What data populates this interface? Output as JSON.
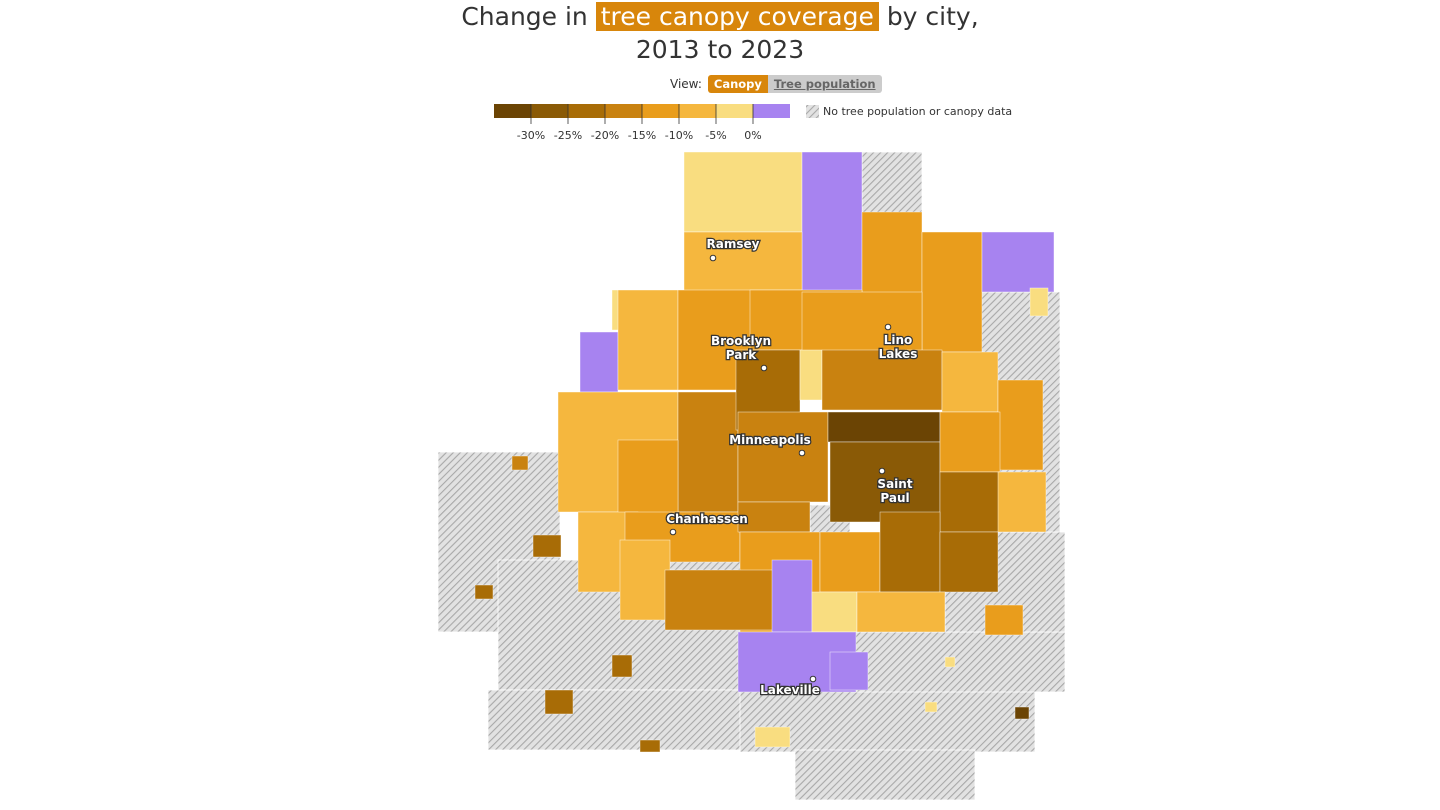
{
  "title": {
    "before": "Change in",
    "highlight": "tree canopy coverage",
    "after": "by city,",
    "line2": "2013 to 2023"
  },
  "view": {
    "label": "View:",
    "options": [
      "Canopy",
      "Tree population"
    ]
  },
  "legend": {
    "colors": [
      "#6b4404",
      "#8a5a06",
      "#a86c06",
      "#c98210",
      "#e99d1c",
      "#f5b73e",
      "#f9dd80",
      "#a783f0"
    ],
    "labels": [
      "-30%",
      "-25%",
      "-20%",
      "-15%",
      "-10%",
      "-5%",
      "0%"
    ],
    "no_data": "No tree population or canopy data"
  },
  "cities": [
    {
      "lines": [
        "Ramsey"
      ]
    },
    {
      "lines": [
        "Brooklyn",
        "Park"
      ]
    },
    {
      "lines": [
        "Lino",
        "Lakes"
      ]
    },
    {
      "lines": [
        "Minneapolis"
      ]
    },
    {
      "lines": [
        "Saint",
        "Paul"
      ]
    },
    {
      "lines": [
        "Chanhassen"
      ]
    },
    {
      "lines": [
        "Lakeville"
      ]
    }
  ]
}
